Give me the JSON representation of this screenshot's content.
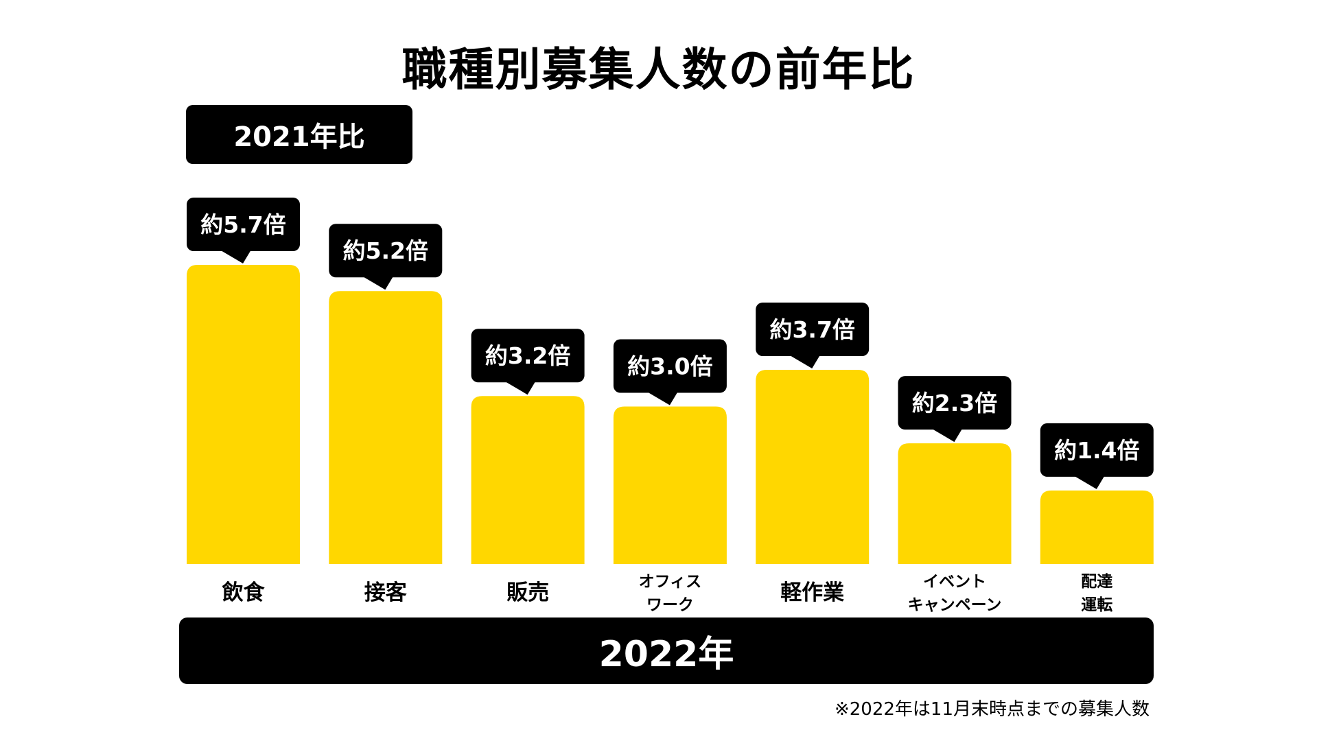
{
  "title": "職種別募集人数の前年比",
  "baseline_label": "2021年比",
  "year_label": "2022年",
  "footnote": "※2022年は11月末時点までの募集人数",
  "colors": {
    "bar": "#FFD700",
    "callout": "#000000",
    "callout_text": "#FFFFFF",
    "background": "#FFFFFF"
  },
  "chart_data": {
    "type": "bar",
    "title": "職種別募集人数の前年比",
    "categories": [
      [
        "飲食"
      ],
      [
        "接客"
      ],
      [
        "販売"
      ],
      [
        "オフィス",
        "ワーク"
      ],
      [
        "軽作業"
      ],
      [
        "イベント",
        "キャンペーン"
      ],
      [
        "配達",
        "運転"
      ]
    ],
    "values": [
      5.7,
      5.2,
      3.2,
      3.0,
      3.7,
      2.3,
      1.4
    ],
    "data_labels": [
      "約5.7倍",
      "約5.2倍",
      "約3.2倍",
      "約3.0倍",
      "約3.7倍",
      "約2.3倍",
      "約1.4倍"
    ],
    "xlabel": "2022年",
    "ylabel": "",
    "ylim": [
      0,
      5.7
    ],
    "grid": false
  }
}
